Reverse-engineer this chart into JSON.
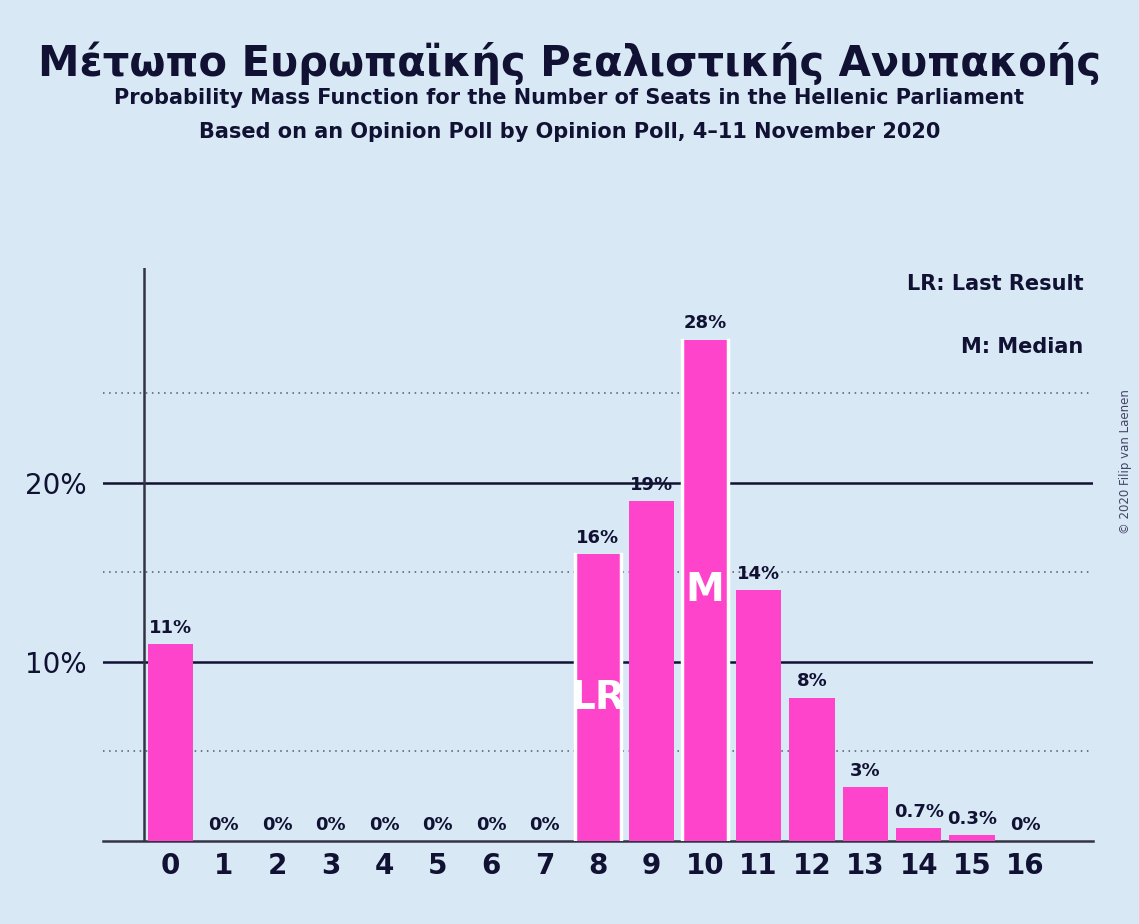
{
  "title_greek": "Μέτωπο Ευρωπαϊκής Ρεαλιστικής Ανυπακοής",
  "subtitle1": "Probability Mass Function for the Number of Seats in the Hellenic Parliament",
  "subtitle2": "Based on an Opinion Poll by Opinion Poll, 4–11 November 2020",
  "copyright": "© 2020 Filip van Laenen",
  "categories": [
    0,
    1,
    2,
    3,
    4,
    5,
    6,
    7,
    8,
    9,
    10,
    11,
    12,
    13,
    14,
    15,
    16
  ],
  "values": [
    11,
    0,
    0,
    0,
    0,
    0,
    0,
    0,
    16,
    19,
    28,
    14,
    8,
    3,
    0.7,
    0.3,
    0
  ],
  "bar_color": "#FF44CC",
  "background_color": "#D8E8F4",
  "text_color": "#111133",
  "label_lr": "LR",
  "label_m": "M",
  "lr_bar_idx": 8,
  "m_bar_idx": 10,
  "legend_lr": "LR: Last Result",
  "legend_m": "M: Median",
  "ylim": [
    0,
    32
  ],
  "dotted_lines": [
    5,
    15,
    25
  ],
  "solid_lines": [
    10,
    20
  ],
  "bar_width": 0.85,
  "figsize": [
    11.39,
    9.24
  ],
  "dpi": 100,
  "title_fontsize": 30,
  "subtitle_fontsize": 15,
  "ytick_fontsize": 20,
  "xtick_fontsize": 20,
  "label_fontsize": 13,
  "legend_fontsize": 15,
  "lr_label_fontsize": 28,
  "m_label_fontsize": 28
}
